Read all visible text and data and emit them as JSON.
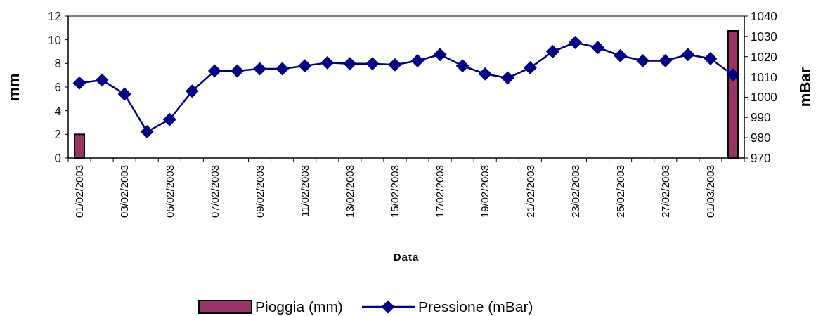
{
  "chart_data": {
    "type": "bar",
    "xlabel": "Data",
    "ylabel": "mm",
    "y2label": "mBar",
    "categories": [
      "01/02/2003",
      null,
      "03/02/2003",
      null,
      "05/02/2003",
      null,
      "07/02/2003",
      null,
      "09/02/2003",
      null,
      "11/02/2003",
      null,
      "13/02/2003",
      null,
      "15/02/2003",
      null,
      "17/02/2003",
      null,
      "19/02/2003",
      null,
      "21/02/2003",
      null,
      "23/02/2003",
      null,
      "25/02/2003",
      null,
      "27/02/2003",
      null,
      "01/03/2003",
      null
    ],
    "series": [
      {
        "name": "Pioggia (mm)",
        "color": "#993366",
        "values": [
          2,
          0,
          0,
          0,
          0,
          0,
          0,
          0,
          0,
          0,
          0,
          0,
          0,
          0,
          0,
          0,
          0,
          0,
          0,
          0,
          0,
          0,
          0,
          0,
          0,
          0,
          0,
          0,
          0,
          10.75
        ]
      },
      {
        "name": "Pressione (mBar)",
        "type": "line",
        "axis": "y2",
        "color": "#000080",
        "marker": "diamond",
        "values": [
          1007,
          1008.5,
          1001.5,
          983,
          989,
          1003,
          1013,
          1013,
          1014,
          1014,
          1015.5,
          1017,
          1016.5,
          1016.5,
          1016,
          1018,
          1021,
          1015.5,
          1011.5,
          1009.5,
          1014.5,
          1022.5,
          1027,
          1024.5,
          1020.5,
          1018,
          1018,
          1021,
          1019,
          1011
        ]
      }
    ],
    "ylim": [
      0,
      12
    ],
    "yticks": [
      0,
      2,
      4,
      6,
      8,
      10,
      12
    ],
    "y2lim": [
      970,
      1040
    ],
    "y2ticks": [
      970,
      980,
      990,
      1000,
      1010,
      1020,
      1030,
      1040
    ],
    "legend": "bottom"
  }
}
